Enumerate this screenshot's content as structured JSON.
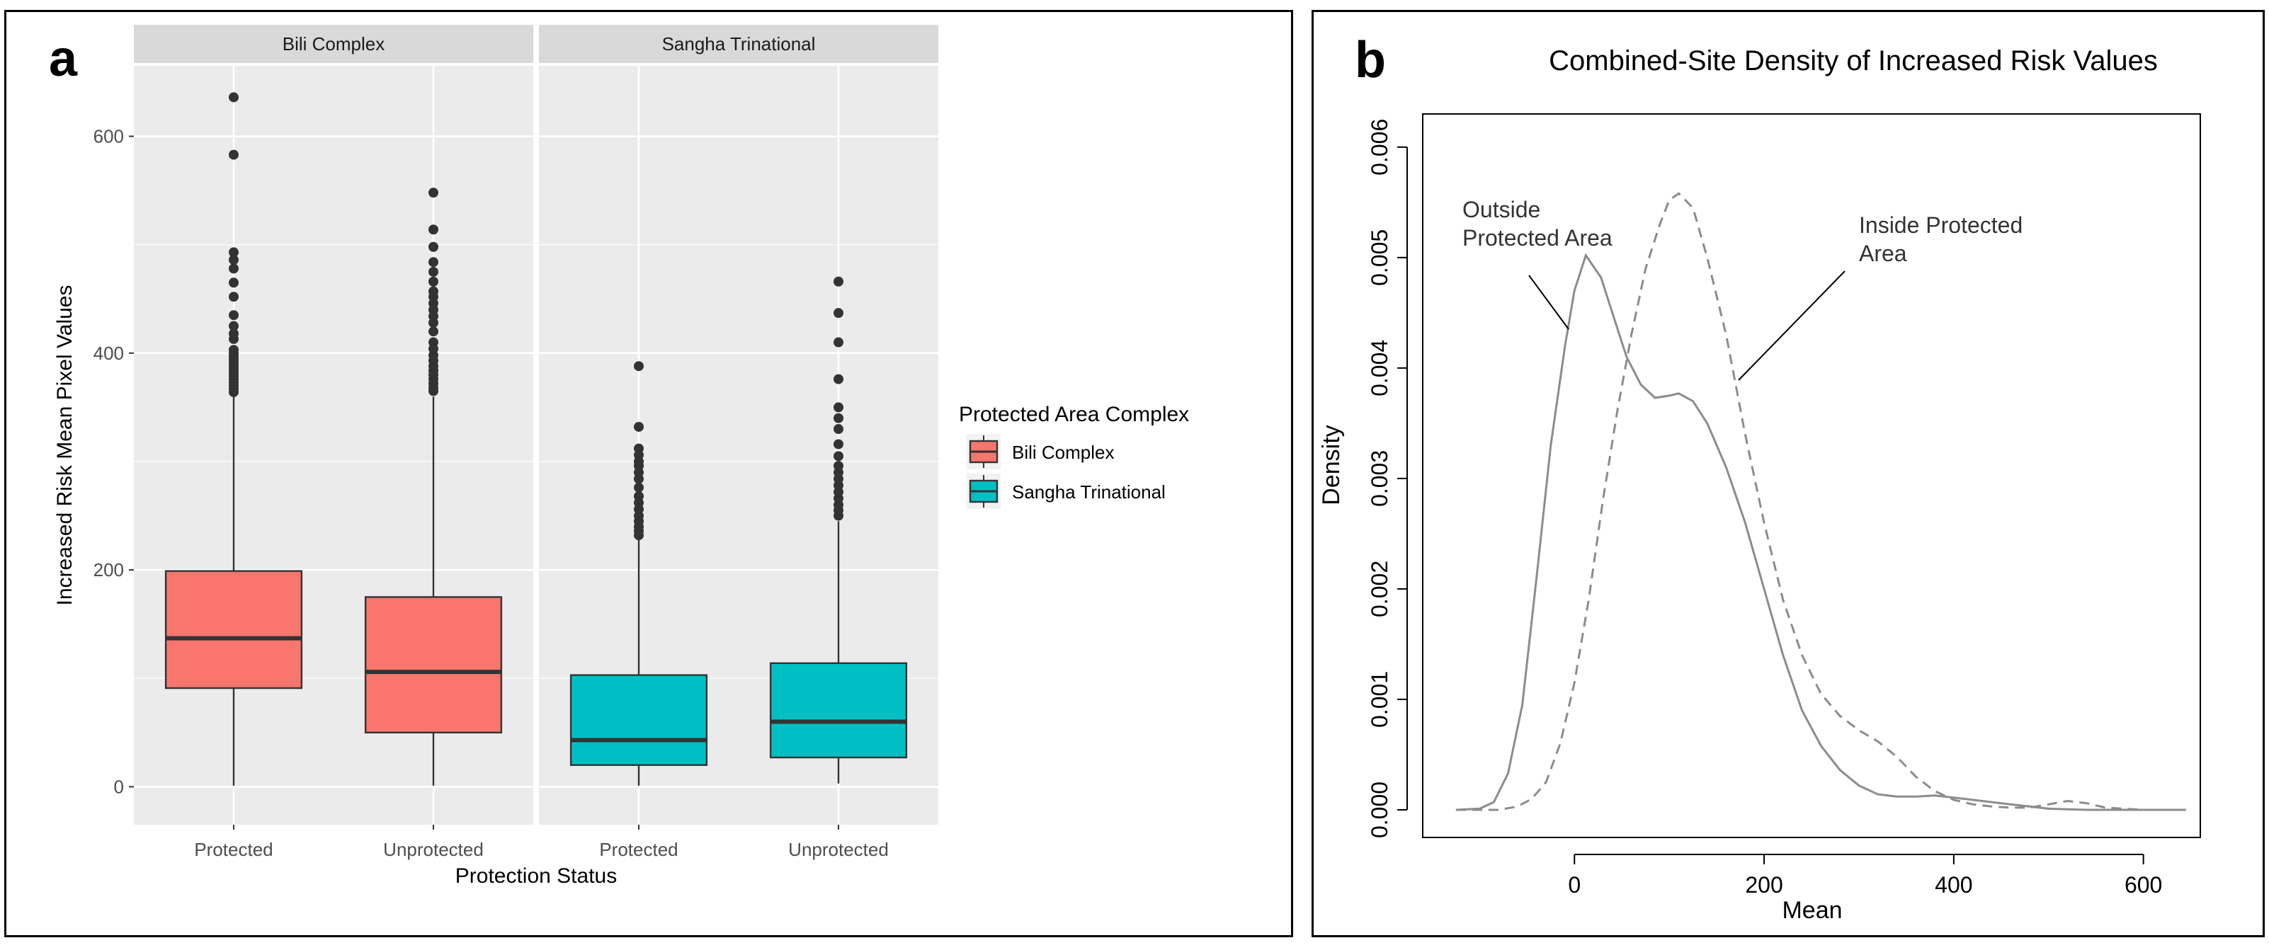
{
  "chart_data": [
    {
      "panel_letter": "a",
      "type": "boxplot",
      "facets": [
        "Bili Complex",
        "Sangha Trinational"
      ],
      "categories": [
        "Protected",
        "Unprotected"
      ],
      "xlabel": "Protection Status",
      "ylabel": "Increased Risk Mean Pixel Values",
      "ylim": [
        -35,
        665
      ],
      "yticks": [
        0,
        200,
        400,
        600
      ],
      "legend": {
        "title": "Protected Area Complex",
        "position": "right",
        "entries": [
          {
            "label": "Bili Complex",
            "color": "#F8766D"
          },
          {
            "label": "Sangha Trinational",
            "color": "#00BFC4"
          }
        ]
      },
      "boxes": [
        {
          "facet": "Bili Complex",
          "category": "Protected",
          "color": "#F8766D",
          "min": 1,
          "q1": 91,
          "median": 137,
          "q3": 199,
          "whisker_high": 360,
          "outliers": [
            364,
            367,
            370,
            373,
            376,
            379,
            382,
            385,
            388,
            391,
            394,
            397,
            400,
            403,
            413,
            418,
            425,
            435,
            452,
            465,
            478,
            486,
            493,
            583,
            636
          ]
        },
        {
          "facet": "Bili Complex",
          "category": "Unprotected",
          "color": "#F8766D",
          "min": 1,
          "q1": 50,
          "median": 106,
          "q3": 175,
          "whisker_high": 360,
          "outliers": [
            365,
            368,
            372,
            376,
            380,
            384,
            388,
            393,
            398,
            404,
            410,
            420,
            428,
            434,
            440,
            446,
            452,
            457,
            466,
            475,
            484,
            498,
            514,
            548
          ]
        },
        {
          "facet": "Sangha Trinational",
          "category": "Protected",
          "color": "#00BFC4",
          "min": 1,
          "q1": 20,
          "median": 43,
          "q3": 103,
          "whisker_high": 228,
          "outliers": [
            232,
            236,
            240,
            245,
            250,
            256,
            262,
            268,
            276,
            284,
            290,
            296,
            300,
            306,
            312,
            332,
            388
          ]
        },
        {
          "facet": "Sangha Trinational",
          "category": "Unprotected",
          "color": "#00BFC4",
          "min": 3,
          "q1": 27,
          "median": 60,
          "q3": 114,
          "whisker_high": 245,
          "outliers": [
            250,
            255,
            260,
            266,
            272,
            278,
            284,
            290,
            296,
            305,
            316,
            330,
            340,
            350,
            376,
            410,
            437,
            466
          ]
        }
      ]
    },
    {
      "panel_letter": "b",
      "type": "line",
      "title": "Combined-Site Density of Increased Risk Values",
      "xlabel": "Mean",
      "ylabel": "Density",
      "xlim": [
        -160,
        660
      ],
      "ylim": [
        -0.00025,
        0.0063
      ],
      "xticks": [
        0,
        200,
        400,
        600
      ],
      "yticks": [
        0.0,
        0.001,
        0.002,
        0.003,
        0.004,
        0.005,
        0.006
      ],
      "ytick_labels": [
        "0.000",
        "0.001",
        "0.002",
        "0.003",
        "0.004",
        "0.005",
        "0.006"
      ],
      "series": [
        {
          "name": "Outside Protected Area",
          "style": "solid",
          "annotation": [
            "Outside",
            "Protected Area"
          ],
          "x": [
            -125,
            -100,
            -85,
            -70,
            -55,
            -40,
            -25,
            -10,
            0,
            12,
            28,
            40,
            55,
            70,
            85,
            100,
            110,
            125,
            140,
            160,
            180,
            200,
            220,
            240,
            260,
            280,
            300,
            320,
            340,
            360,
            380,
            400,
            420,
            440,
            460,
            480,
            500,
            540,
            600,
            645
          ],
          "y": [
            0.0,
            1e-05,
            7e-05,
            0.00033,
            0.00095,
            0.0021,
            0.0033,
            0.0042,
            0.0047,
            0.00502,
            0.00482,
            0.0045,
            0.0041,
            0.00385,
            0.00373,
            0.00375,
            0.00377,
            0.0037,
            0.0035,
            0.0031,
            0.0026,
            0.002,
            0.0014,
            0.0009,
            0.00058,
            0.00036,
            0.00022,
            0.00014,
            0.00012,
            0.00012,
            0.00013,
            0.00011,
            9e-05,
            7e-05,
            5e-05,
            3e-05,
            1e-05,
            0.0,
            0.0,
            0.0
          ]
        },
        {
          "name": "Inside Protected Area",
          "style": "dashed",
          "annotation": [
            "Inside Protected",
            "Area"
          ],
          "x": [
            -125,
            -80,
            -60,
            -45,
            -30,
            -15,
            0,
            15,
            30,
            45,
            60,
            75,
            90,
            100,
            110,
            125,
            140,
            160,
            180,
            200,
            220,
            240,
            260,
            280,
            300,
            320,
            340,
            360,
            380,
            400,
            420,
            440,
            460,
            480,
            500,
            520,
            540,
            560,
            600,
            645
          ],
          "y": [
            0.0,
            0.0,
            3e-05,
            0.0001,
            0.00025,
            0.0006,
            0.00115,
            0.0019,
            0.0028,
            0.0036,
            0.0043,
            0.0049,
            0.0053,
            0.00552,
            0.00558,
            0.00545,
            0.005,
            0.0043,
            0.0034,
            0.0026,
            0.0019,
            0.0014,
            0.00105,
            0.00085,
            0.00072,
            0.00062,
            0.00048,
            0.0003,
            0.00017,
            9e-05,
            5e-05,
            3e-05,
            2e-05,
            2e-05,
            5e-05,
            8e-05,
            6e-05,
            2e-05,
            0.0,
            0.0
          ]
        }
      ]
    }
  ]
}
